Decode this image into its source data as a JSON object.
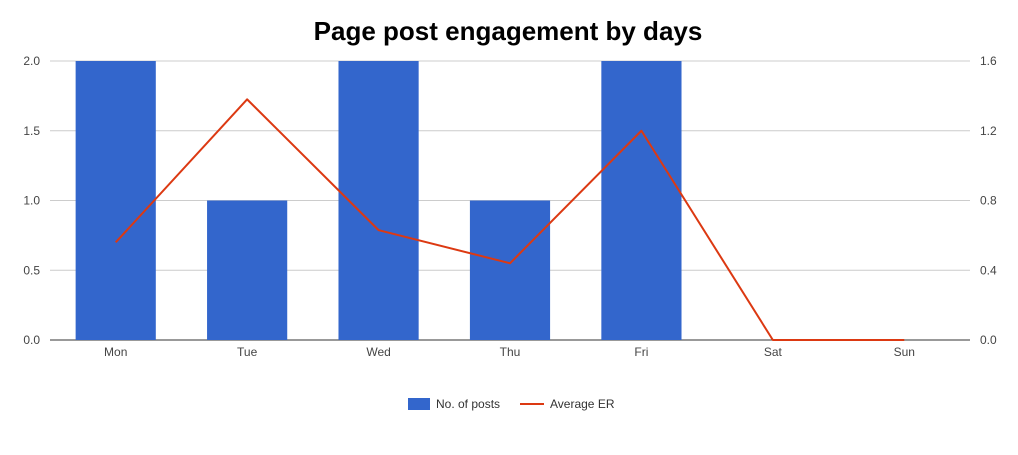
{
  "chart_data": {
    "type": "bar",
    "title": "Page post engagement by days",
    "categories": [
      "Mon",
      "Tue",
      "Wed",
      "Thu",
      "Fri",
      "Sat",
      "Sun"
    ],
    "series": [
      {
        "name": "No. of posts",
        "type": "bar",
        "axis": "left",
        "color": "#3366cc",
        "values": [
          2,
          1,
          2,
          1,
          2,
          0,
          0
        ]
      },
      {
        "name": "Average ER",
        "type": "line",
        "axis": "right",
        "color": "#dc3912",
        "values": [
          0.56,
          1.38,
          0.63,
          0.44,
          1.2,
          0,
          0
        ]
      }
    ],
    "y_left": {
      "ylim": [
        0,
        2
      ],
      "ticks": [
        "0.0",
        "0.5",
        "1.0",
        "1.5",
        "2.0"
      ]
    },
    "y_right": {
      "ylim": [
        0,
        1.6
      ],
      "ticks": [
        "0.0",
        "0.4",
        "0.8",
        "1.2",
        "1.6"
      ]
    },
    "grid": true,
    "legend": "bottom"
  }
}
